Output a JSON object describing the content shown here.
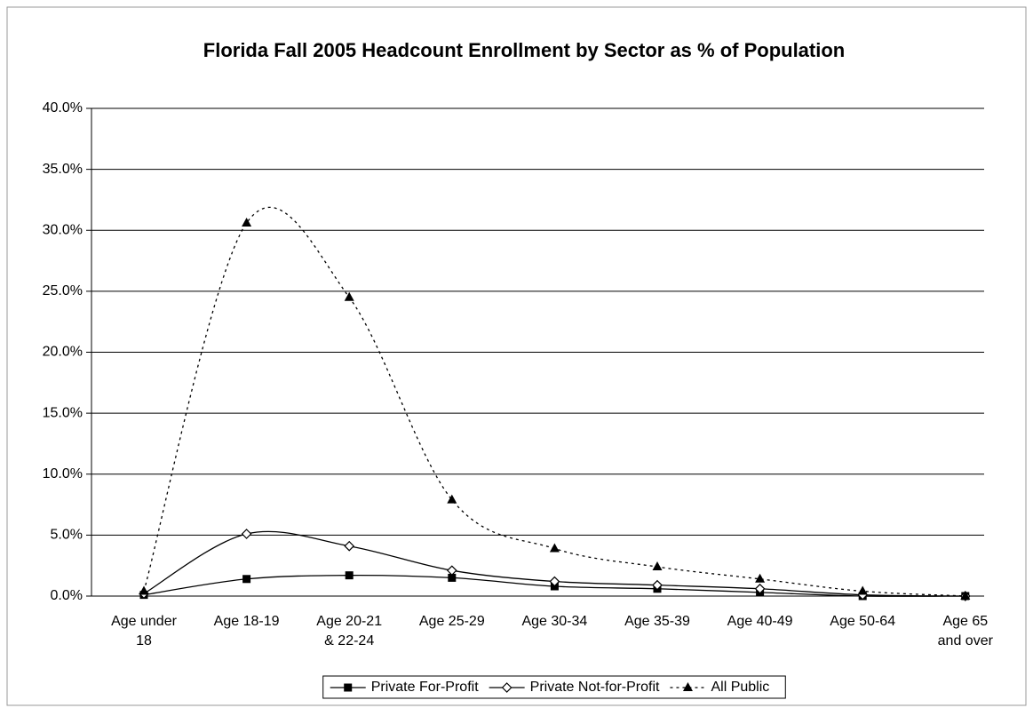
{
  "chart_data": {
    "type": "line",
    "title": "Florida Fall 2005 Headcount Enrollment by Sector as % of Population",
    "categories": [
      "Age under 18",
      "Age 18-19",
      "Age 20-21 & 22-24",
      "Age 25-29",
      "Age 30-34",
      "Age 35-39",
      "Age 40-49",
      "Age 50-64",
      "Age 65 and over"
    ],
    "series": [
      {
        "name": "Private For-Profit",
        "color": "#000000",
        "marker": "square",
        "dash": "solid",
        "values": [
          0.1,
          1.4,
          1.7,
          1.5,
          0.8,
          0.6,
          0.3,
          0.0,
          0.0
        ]
      },
      {
        "name": "Private Not-for-Profit",
        "color": "#000000",
        "marker": "diamond",
        "dash": "solid",
        "values": [
          0.2,
          5.1,
          4.1,
          2.1,
          1.2,
          0.9,
          0.6,
          0.1,
          0.0
        ]
      },
      {
        "name": "All Public",
        "color": "#000000",
        "marker": "triangle",
        "dash": "dotted",
        "values": [
          0.4,
          30.6,
          24.5,
          7.9,
          3.9,
          2.4,
          1.4,
          0.4,
          0.0
        ]
      }
    ],
    "ylim": [
      0,
      40
    ],
    "yticks": [
      {
        "value": 0,
        "label": "0.0%"
      },
      {
        "value": 5,
        "label": "5.0%"
      },
      {
        "value": 10,
        "label": "10.0%"
      },
      {
        "value": 15,
        "label": "15.0%"
      },
      {
        "value": 20,
        "label": "20.0%"
      },
      {
        "value": 25,
        "label": "25.0%"
      },
      {
        "value": 30,
        "label": "30.0%"
      },
      {
        "value": 35,
        "label": "35.0%"
      },
      {
        "value": 40,
        "label": "40.0%"
      }
    ],
    "grid": true,
    "smooth": true,
    "legend": "bottom"
  }
}
